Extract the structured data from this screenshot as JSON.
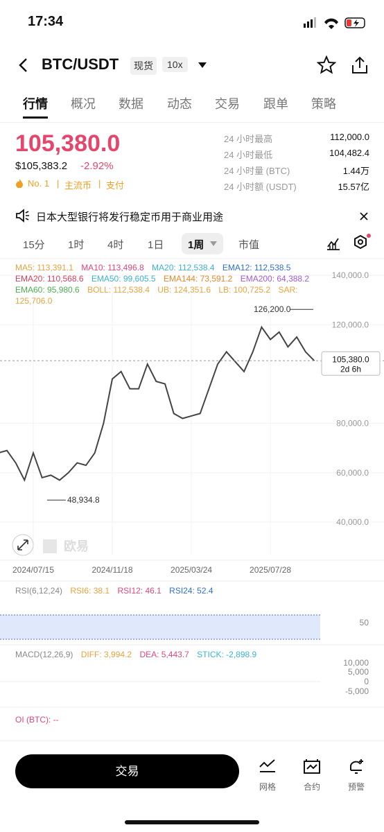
{
  "status_bar": {
    "time": "17:34"
  },
  "header": {
    "pair": "BTC/USDT",
    "market": "现货",
    "leverage": "10x"
  },
  "tabs": [
    "行情",
    "概况",
    "数据",
    "动态",
    "交易",
    "跟单",
    "策略"
  ],
  "price": {
    "last": "105,380.0",
    "fiat": "$105,383.2",
    "change": "-2.92%",
    "tags": [
      "No. 1",
      "主流币",
      "支付"
    ]
  },
  "stats": [
    {
      "label": "24 小时最高",
      "value": "112,000.0"
    },
    {
      "label": "24 小时最低",
      "value": "104,482.4"
    },
    {
      "label": "24 小时量 (BTC)",
      "value": "1.44万"
    },
    {
      "label": "24 小时额 (USDT)",
      "value": "15.57亿"
    }
  ],
  "news": "日本大型银行将发行稳定币用于商业用途",
  "intervals": [
    "15分",
    "1时",
    "4时",
    "1日",
    "1周",
    "市值"
  ],
  "indicators": {
    "main": [
      {
        "text": "MA5: 113,391.1",
        "color": "#e8a33d"
      },
      {
        "text": "MA10: 113,496.8",
        "color": "#e0467c"
      },
      {
        "text": "MA20: 112,538.4",
        "color": "#3bb3d0"
      },
      {
        "text": "EMA12: 112,538.5",
        "color": "#2f6fd6"
      },
      {
        "text": "EMA20: 110,568.6",
        "color": "#d83c5c"
      },
      {
        "text": "EMA50: 99,605.5",
        "color": "#3bb3d0"
      },
      {
        "text": "EMA144: 73,591.2",
        "color": "#e8872a"
      },
      {
        "text": "EMA200: 64,388.2",
        "color": "#a05ad6"
      },
      {
        "text": "EMA60: 95,980.6",
        "color": "#4caf50"
      },
      {
        "text": "BOLL: 112,538.4",
        "color": "#e8a33d"
      },
      {
        "text": "UB: 124,351.6",
        "color": "#e8a33d"
      },
      {
        "text": "LB: 100,725.2",
        "color": "#e8a33d"
      },
      {
        "text": "SAR: 125,706.0",
        "color": "#e8a33d"
      }
    ],
    "rsi": [
      {
        "text": "RSI(6,12,24)",
        "color": "#888888"
      },
      {
        "text": "RSI6: 38.1",
        "color": "#e8a33d"
      },
      {
        "text": "RSI12: 46.1",
        "color": "#e0467c"
      },
      {
        "text": "RSI24: 52.4",
        "color": "#2f6fd6"
      }
    ],
    "rsi_ticks": [
      "50"
    ],
    "macd": [
      {
        "text": "MACD(12,26,9)",
        "color": "#888888"
      },
      {
        "text": "DIFF: 3,994.2",
        "color": "#e8a33d"
      },
      {
        "text": "DEA: 5,443.7",
        "color": "#e0467c"
      },
      {
        "text": "STICK: -2,898.9",
        "color": "#3bb3d0"
      }
    ],
    "macd_ticks": [
      "10,000",
      "5,000",
      "0",
      "-5,000"
    ],
    "oi": {
      "text": "OI (BTC): --",
      "color": "#e0467c"
    }
  },
  "chart_data": {
    "type": "line",
    "color": "#444444",
    "x": [
      "2024/05/20",
      "2024/06/03",
      "2024/06/17",
      "2024/07/01",
      "2024/07/15",
      "2024/07/29",
      "2024/08/12",
      "2024/08/26",
      "2024/09/09",
      "2024/09/23",
      "2024/10/07",
      "2024/10/21",
      "2024/11/04",
      "2024/11/18",
      "2024/12/02",
      "2024/12/16",
      "2024/12/30",
      "2025/01/13",
      "2025/01/27",
      "2025/02/10",
      "2025/02/24",
      "2025/03/10",
      "2025/03/24",
      "2025/04/07",
      "2025/04/21",
      "2025/05/05",
      "2025/05/19",
      "2025/06/02",
      "2025/06/16",
      "2025/06/30",
      "2025/07/14",
      "2025/07/28",
      "2025/08/11",
      "2025/08/25",
      "2025/09/08",
      "2025/09/22",
      "2025/10/06"
    ],
    "values": [
      68000,
      69000,
      64000,
      57000,
      68000,
      58000,
      59000,
      57000,
      60000,
      64000,
      63000,
      68000,
      80000,
      98000,
      101000,
      94000,
      94000,
      104000,
      97000,
      96000,
      84000,
      82000,
      83000,
      84000,
      94000,
      104000,
      109000,
      105000,
      101000,
      109000,
      119000,
      114000,
      117000,
      111000,
      115000,
      109000,
      105380
    ],
    "xticks": [
      "2024/07/15",
      "2024/11/18",
      "2025/03/24",
      "2025/07/28"
    ],
    "ylim": [
      26800,
      146200
    ],
    "yticks": [
      {
        "value": 40000,
        "label": "40,000.0"
      },
      {
        "value": 60000,
        "label": "60,000.0"
      },
      {
        "value": 80000,
        "label": "80,000.0"
      },
      {
        "value": 120000,
        "label": "120,000.0"
      },
      {
        "value": 140000,
        "label": "140,000.0"
      }
    ],
    "grid": true,
    "current_price": {
      "value": 105380,
      "label": "105,380.0"
    },
    "countdown": "2d 6h",
    "high": {
      "value": 126200,
      "label": "126,200.0"
    },
    "low": {
      "value": 48934.8,
      "label": "48,934.8"
    },
    "watermark": "欧易"
  },
  "bottom_bar": {
    "trade": "交易",
    "icons": [
      "网格",
      "合约",
      "预警"
    ]
  }
}
